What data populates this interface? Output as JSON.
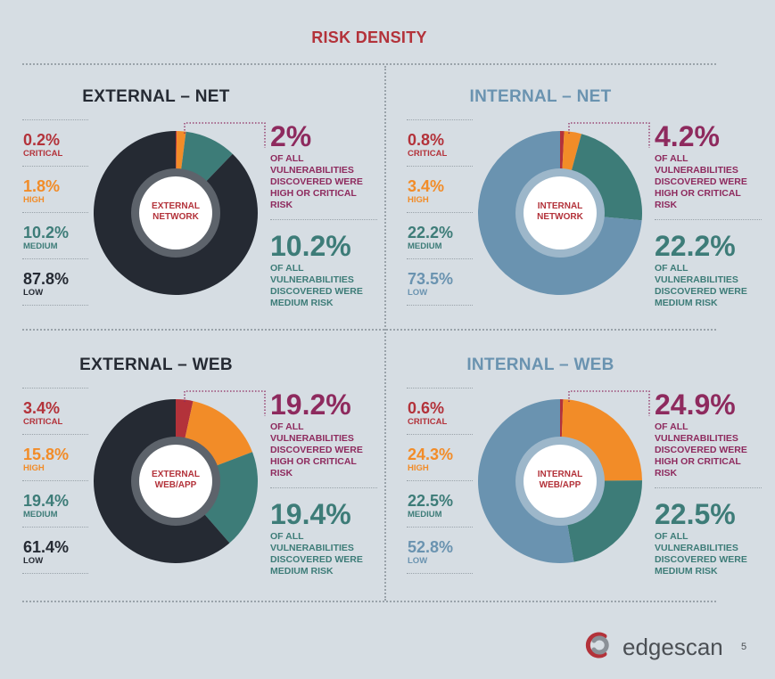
{
  "header": {
    "title": "RISK DENSITY"
  },
  "colors": {
    "critical": "#b3323a",
    "high": "#f28c28",
    "medium": "#3d7c78",
    "low_external": "#252a33",
    "low_internal": "#6a93b0",
    "highlight": "#8e2a5e",
    "inner_ring": "#5d636b"
  },
  "chart_data": [
    {
      "type": "pie",
      "title": "EXTERNAL – NET",
      "center_label": [
        "EXTERNAL",
        "NETWORK"
      ],
      "categories": [
        "CRITICAL",
        "HIGH",
        "MEDIUM",
        "LOW"
      ],
      "values": [
        0.2,
        1.8,
        10.2,
        87.8
      ],
      "value_labels": [
        "0.2%",
        "1.8%",
        "10.2%",
        "87.8%"
      ],
      "high_critical": {
        "value": "2%",
        "text": "OF ALL VULNERABILITIES DISCOVERED WERE HIGH OR CRITICAL RISK"
      },
      "medium": {
        "value": "10.2%",
        "text": "OF ALL VULNERABILITIES DISCOVERED WERE MEDIUM RISK"
      }
    },
    {
      "type": "pie",
      "title": "INTERNAL – NET",
      "center_label": [
        "INTERNAL",
        "NETWORK"
      ],
      "categories": [
        "CRITICAL",
        "HIGH",
        "MEDIUM",
        "LOW"
      ],
      "values": [
        0.8,
        3.4,
        22.2,
        73.5
      ],
      "value_labels": [
        "0.8%",
        "3.4%",
        "22.2%",
        "73.5%"
      ],
      "high_critical": {
        "value": "4.2%",
        "text": "OF ALL VULNERABILITIES DISCOVERED WERE HIGH OR CRITICAL RISK"
      },
      "medium": {
        "value": "22.2%",
        "text": "OF ALL VULNERABILITIES DISCOVERED WERE MEDIUM RISK"
      }
    },
    {
      "type": "pie",
      "title": "EXTERNAL – WEB",
      "center_label": [
        "EXTERNAL",
        "WEB/APP"
      ],
      "categories": [
        "CRITICAL",
        "HIGH",
        "MEDIUM",
        "LOW"
      ],
      "values": [
        3.4,
        15.8,
        19.4,
        61.4
      ],
      "value_labels": [
        "3.4%",
        "15.8%",
        "19.4%",
        "61.4%"
      ],
      "high_critical": {
        "value": "19.2%",
        "text": "OF ALL VULNERABILITIES DISCOVERED WERE HIGH OR CRITICAL RISK"
      },
      "medium": {
        "value": "19.4%",
        "text": "OF ALL VULNERABILITIES DISCOVERED WERE MEDIUM RISK"
      }
    },
    {
      "type": "pie",
      "title": "INTERNAL – WEB",
      "center_label": [
        "INTERNAL",
        "WEB/APP"
      ],
      "categories": [
        "CRITICAL",
        "HIGH",
        "MEDIUM",
        "LOW"
      ],
      "values": [
        0.6,
        24.3,
        22.5,
        52.8
      ],
      "value_labels": [
        "0.6%",
        "24.3%",
        "22.5%",
        "52.8%"
      ],
      "high_critical": {
        "value": "24.9%",
        "text": "OF ALL VULNERABILITIES DISCOVERED WERE HIGH OR CRITICAL RISK"
      },
      "medium": {
        "value": "22.5%",
        "text": "OF ALL VULNERABILITIES DISCOVERED WERE MEDIUM RISK"
      }
    }
  ],
  "footer": {
    "brand": "edgescan",
    "page_number": "5",
    "logo_icon": "edgescan-logo-icon"
  }
}
